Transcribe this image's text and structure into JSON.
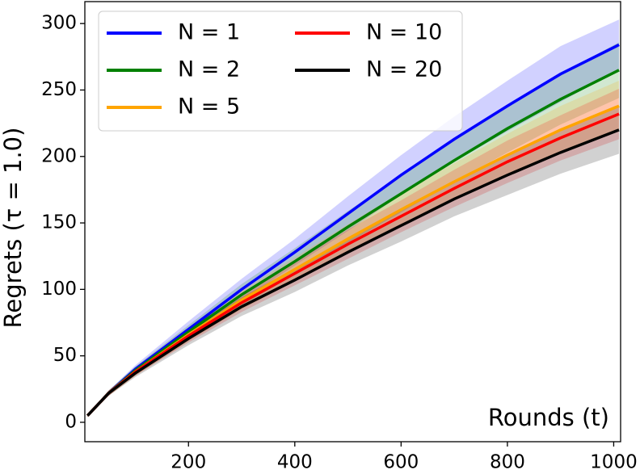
{
  "chart_data": {
    "type": "line",
    "y_label": "Regrets (τ = 1.0)",
    "annotation": "Rounds (t)",
    "x": [
      10,
      50,
      100,
      200,
      300,
      400,
      500,
      600,
      700,
      800,
      900,
      1010
    ],
    "xlim": [
      5,
      1013
    ],
    "ylim": [
      -14.6,
      316.5
    ],
    "xticks": [
      200,
      400,
      600,
      800,
      1000
    ],
    "yticks": [
      0,
      50,
      100,
      150,
      200,
      250,
      300
    ],
    "legend": "upper left",
    "series": [
      {
        "name": "N = 1",
        "color": "#0000ff",
        "values": [
          5,
          22,
          40,
          70,
          100,
          128,
          157,
          186,
          213,
          238,
          262,
          284
        ],
        "upper": [
          6,
          24,
          43,
          76,
          108,
          138,
          170,
          201,
          230,
          257,
          283,
          303
        ],
        "lower": [
          4,
          20,
          37,
          64,
          92,
          118,
          144,
          171,
          196,
          219,
          241,
          265
        ]
      },
      {
        "name": "N = 2",
        "color": "#008000",
        "values": [
          5,
          22,
          39,
          68,
          96,
          121,
          147,
          172,
          197,
          221,
          243,
          265
        ],
        "upper": [
          6,
          24,
          42,
          73,
          104,
          131,
          159,
          186,
          213,
          239,
          262,
          286
        ],
        "lower": [
          4,
          20,
          36,
          63,
          88,
          111,
          135,
          158,
          181,
          203,
          224,
          244
        ]
      },
      {
        "name": "N = 5",
        "color": "#ffa500",
        "values": [
          5,
          22,
          38,
          66,
          92,
          115,
          138,
          160,
          181,
          201,
          220,
          238
        ],
        "upper": [
          6,
          24,
          41,
          71,
          99,
          124,
          149,
          173,
          195,
          217,
          238,
          257
        ],
        "lower": [
          4,
          20,
          35,
          61,
          85,
          106,
          127,
          147,
          167,
          185,
          202,
          219
        ]
      },
      {
        "name": "N = 10",
        "color": "#ff0000",
        "values": [
          5,
          22,
          38,
          65,
          90,
          112,
          134,
          155,
          176,
          196,
          214,
          232
        ],
        "upper": [
          6,
          24,
          41,
          70,
          97,
          121,
          145,
          167,
          190,
          212,
          231,
          251
        ],
        "lower": [
          4,
          20,
          35,
          60,
          83,
          103,
          123,
          143,
          162,
          180,
          197,
          213
        ]
      },
      {
        "name": "N = 20",
        "color": "#000000",
        "values": [
          5,
          22,
          37,
          63,
          87,
          107,
          128,
          148,
          168,
          186,
          203,
          220
        ],
        "upper": [
          6,
          24,
          40,
          68,
          94,
          116,
          138,
          160,
          181,
          201,
          219,
          238
        ],
        "lower": [
          4,
          20,
          34,
          58,
          80,
          98,
          118,
          136,
          155,
          171,
          187,
          202
        ]
      }
    ]
  }
}
